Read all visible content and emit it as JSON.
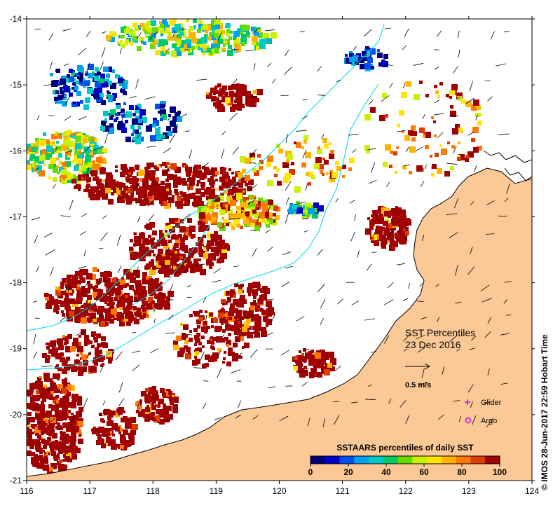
{
  "map": {
    "lon_ticks": [
      "116",
      "117",
      "118",
      "119",
      "120",
      "121",
      "122",
      "123",
      "124"
    ],
    "lat_ticks": [
      "-14",
      "-15",
      "-16",
      "-17",
      "-18",
      "-19",
      "-20",
      "-21"
    ],
    "lon_range": [
      116,
      124
    ],
    "lat_range": [
      -21,
      -14
    ],
    "land_color": "#fcc896",
    "coast_color": "#000000",
    "contour_color": "#00d4e8"
  },
  "annotations": {
    "title": "SST Percentiles",
    "date": "23 Dec 2016",
    "scale_label": "0.5 m/s",
    "glider_label": "Glider",
    "argo_label": "Argo",
    "glider_color": "#d633d6",
    "argo_color": "#d633d6"
  },
  "colorbar": {
    "title": "SSTAARS percentiles of daily SST",
    "tick_labels": [
      "0",
      "20",
      "40",
      "60",
      "80",
      "100"
    ],
    "colors": [
      "#00007a",
      "#0000c8",
      "#0050f0",
      "#00a0f0",
      "#00c8c8",
      "#00c864",
      "#64dc00",
      "#c8f000",
      "#ffe600",
      "#ffb400",
      "#ff7800",
      "#dc3c00",
      "#a00000"
    ]
  },
  "credit": "© IMOS 28-Jun-2017 22:59 Hobart Time"
}
